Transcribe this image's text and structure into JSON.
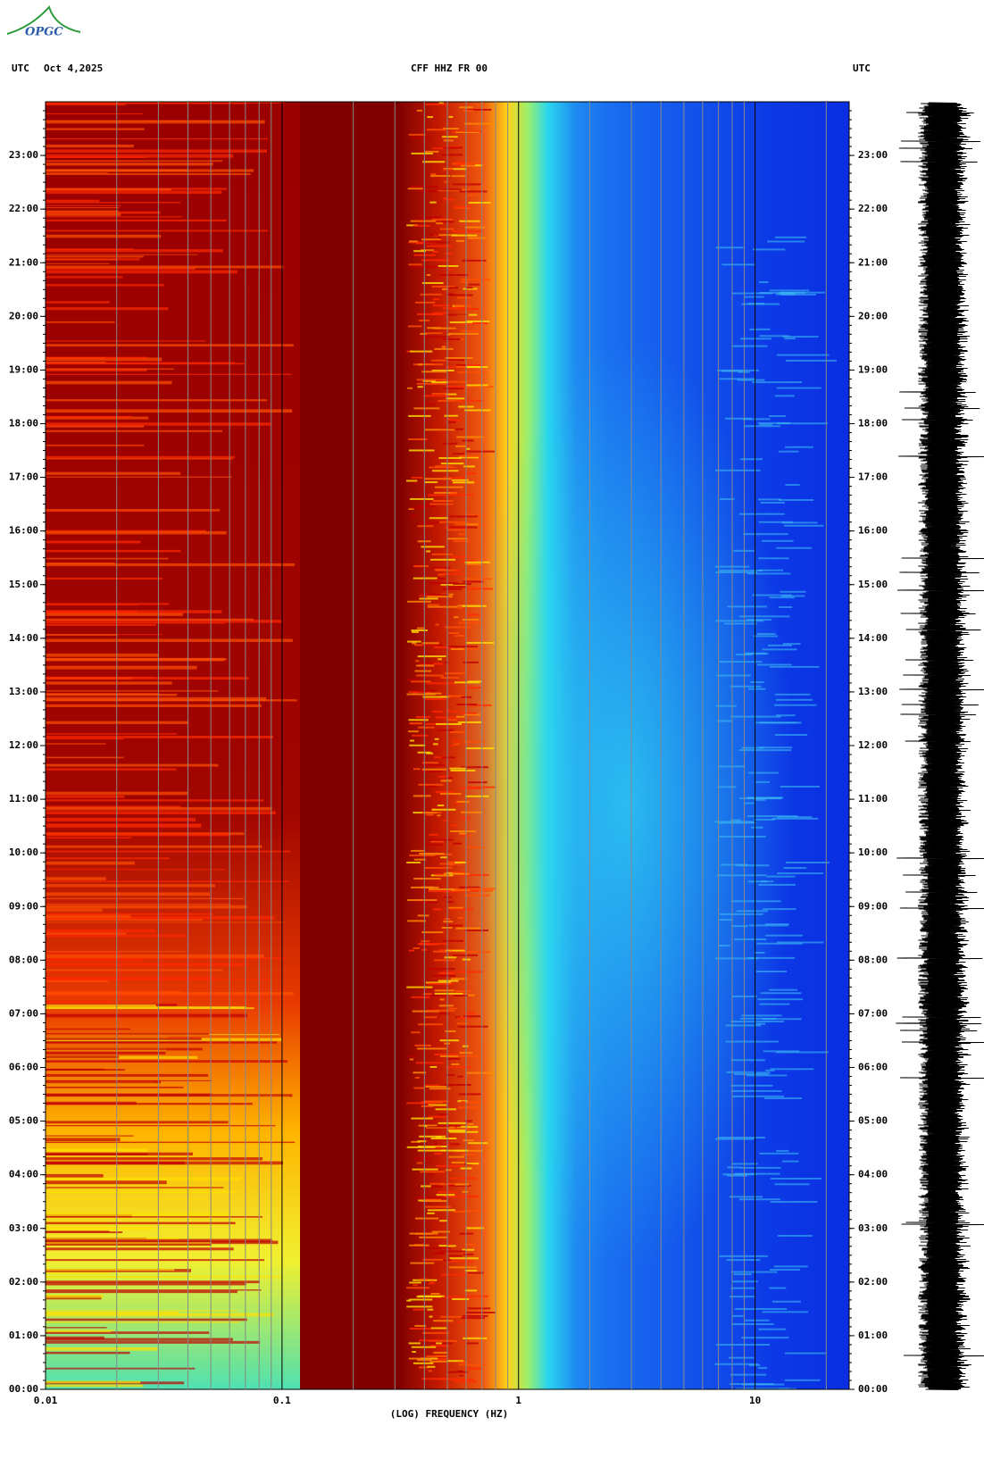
{
  "logo": "OPGC",
  "chart_data": {
    "type": "spectrogram",
    "title": "CFF HHZ FR 00",
    "time_zone_left": "UTC",
    "date": "Oct 4,2025",
    "time_zone_right": "UTC",
    "x_label": "(LOG) FREQUENCY (HZ)",
    "xscale": "log",
    "xlim": [
      0.01,
      25
    ],
    "xticks": [
      0.01,
      0.1,
      1,
      10
    ],
    "ylim": [
      0,
      24
    ],
    "yticks": [
      {
        "value": 0,
        "label": "00:00"
      },
      {
        "value": 1,
        "label": "01:00"
      },
      {
        "value": 2,
        "label": "02:00"
      },
      {
        "value": 3,
        "label": "03:00"
      },
      {
        "value": 4,
        "label": "04:00"
      },
      {
        "value": 5,
        "label": "05:00"
      },
      {
        "value": 6,
        "label": "06:00"
      },
      {
        "value": 7,
        "label": "07:00"
      },
      {
        "value": 8,
        "label": "08:00"
      },
      {
        "value": 9,
        "label": "09:00"
      },
      {
        "value": 10,
        "label": "10:00"
      },
      {
        "value": 11,
        "label": "11:00"
      },
      {
        "value": 12,
        "label": "12:00"
      },
      {
        "value": 13,
        "label": "13:00"
      },
      {
        "value": 14,
        "label": "14:00"
      },
      {
        "value": 15,
        "label": "15:00"
      },
      {
        "value": 16,
        "label": "16:00"
      },
      {
        "value": 17,
        "label": "17:00"
      },
      {
        "value": 18,
        "label": "18:00"
      },
      {
        "value": 19,
        "label": "19:00"
      },
      {
        "value": 20,
        "label": "20:00"
      },
      {
        "value": 21,
        "label": "21:00"
      },
      {
        "value": 22,
        "label": "22:00"
      },
      {
        "value": 23,
        "label": "23:00"
      }
    ],
    "grid": true
  }
}
